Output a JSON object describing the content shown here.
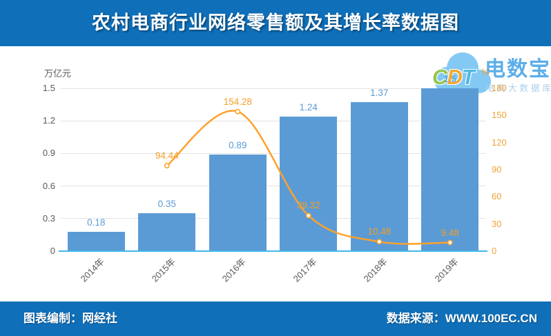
{
  "header": {
    "title": "农村电商行业网络零售额及其增长率数据图"
  },
  "footer": {
    "left": "图表编制：网经社",
    "right": "数据来源：WWW.100EC.CN",
    "bg_color": "#0F6FB8"
  },
  "watermark": {
    "cdt": "CDT",
    "brand": "电数宝",
    "subtitle": "电商大数据库",
    "brand_color": "#4FA8E8"
  },
  "chart_data": {
    "type": "bar+line combo",
    "title": "农村电商行业网络零售额及其增长率数据图",
    "categories": [
      "2014年",
      "2015年",
      "2016年",
      "2017年",
      "2018年",
      "2019年"
    ],
    "series": [
      {
        "name": "网络零售额",
        "type": "bar",
        "axis": "left",
        "unit": "万亿元",
        "values": [
          0.18,
          0.35,
          0.89,
          1.24,
          1.37,
          1.5
        ],
        "color": "#5B9BD5",
        "label_color": "#5B9BD5"
      },
      {
        "name": "增长率",
        "type": "line",
        "axis": "right",
        "unit": "%",
        "values": [
          null,
          94.44,
          154.28,
          39.32,
          10.48,
          9.48
        ],
        "color": "#FFA12C",
        "label_color": "#F59E27",
        "marker": "circle-open"
      }
    ],
    "left_axis": {
      "unit": "万亿元",
      "min": 0,
      "max": 1.5,
      "ticks": [
        "0",
        "0.3",
        "0.6",
        "0.9",
        "1.2",
        "1.5"
      ],
      "label_color": "#595959"
    },
    "right_axis": {
      "unit": "%",
      "min": 0,
      "max": 180,
      "ticks": [
        "0",
        "30",
        "60",
        "90",
        "120",
        "150",
        "180"
      ],
      "label_color": "#F0A236"
    },
    "grid": true,
    "gridline_color": "#E3E3E3",
    "baseline_color": "#3FB8E8",
    "legend": "none"
  }
}
